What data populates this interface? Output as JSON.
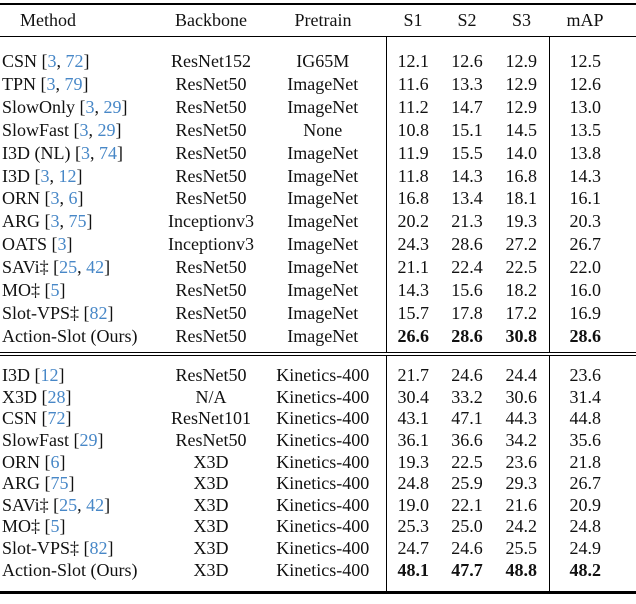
{
  "table": {
    "columns": [
      "Method",
      "Backbone",
      "Pretrain",
      "S1",
      "S2",
      "S3",
      "mAP"
    ],
    "colors": {
      "citation_blue": "#4787C7",
      "text": "#111111",
      "rule": "#000000",
      "background": "#ffffff"
    },
    "sections": [
      {
        "name": "imagenet-pretrain-group",
        "rows": [
          {
            "method": "CSN",
            "cites": [
              "3",
              "72"
            ],
            "backbone": "ResNet152",
            "pretrain": "IG65M",
            "scores": [
              "12.1",
              "12.6",
              "12.9"
            ],
            "map": "12.5",
            "bold": false
          },
          {
            "method": "TPN",
            "cites": [
              "3",
              "79"
            ],
            "backbone": "ResNet50",
            "pretrain": "ImageNet",
            "scores": [
              "11.6",
              "13.3",
              "12.9"
            ],
            "map": "12.6",
            "bold": false
          },
          {
            "method": "SlowOnly",
            "cites": [
              "3",
              "29"
            ],
            "backbone": "ResNet50",
            "pretrain": "ImageNet",
            "scores": [
              "11.2",
              "14.7",
              "12.9"
            ],
            "map": "13.0",
            "bold": false
          },
          {
            "method": "SlowFast",
            "cites": [
              "3",
              "29"
            ],
            "backbone": "ResNet50",
            "pretrain": "None",
            "scores": [
              "10.8",
              "15.1",
              "14.5"
            ],
            "map": "13.5",
            "bold": false
          },
          {
            "method": "I3D (NL)",
            "cites": [
              "3",
              "74"
            ],
            "backbone": "ResNet50",
            "pretrain": "ImageNet",
            "scores": [
              "11.9",
              "15.5",
              "14.0"
            ],
            "map": "13.8",
            "bold": false
          },
          {
            "method": "I3D",
            "cites": [
              "3",
              "12"
            ],
            "backbone": "ResNet50",
            "pretrain": "ImageNet",
            "scores": [
              "11.8",
              "14.3",
              "16.8"
            ],
            "map": "14.3",
            "bold": false
          },
          {
            "method": "ORN",
            "cites": [
              "3",
              "6"
            ],
            "backbone": "ResNet50",
            "pretrain": "ImageNet",
            "scores": [
              "16.8",
              "13.4",
              "18.1"
            ],
            "map": "16.1",
            "bold": false
          },
          {
            "method": "ARG",
            "cites": [
              "3",
              "75"
            ],
            "backbone": "Inceptionv3",
            "pretrain": "ImageNet",
            "scores": [
              "20.2",
              "21.3",
              "19.3"
            ],
            "map": "20.3",
            "bold": false
          },
          {
            "method": "OATS",
            "cites": [
              "3"
            ],
            "backbone": "Inceptionv3",
            "pretrain": "ImageNet",
            "scores": [
              "24.3",
              "28.6",
              "27.2"
            ],
            "map": "26.7",
            "bold": false
          },
          {
            "method": "SAVi‡",
            "cites": [
              "25",
              "42"
            ],
            "backbone": "ResNet50",
            "pretrain": "ImageNet",
            "scores": [
              "21.1",
              "22.4",
              "22.5"
            ],
            "map": "22.0",
            "bold": false
          },
          {
            "method": "MO‡",
            "cites": [
              "5"
            ],
            "backbone": "ResNet50",
            "pretrain": "ImageNet",
            "scores": [
              "14.3",
              "15.6",
              "18.2"
            ],
            "map": "16.0",
            "bold": false
          },
          {
            "method": "Slot-VPS‡",
            "cites": [
              "82"
            ],
            "backbone": "ResNet50",
            "pretrain": "ImageNet",
            "scores": [
              "15.7",
              "17.8",
              "17.2"
            ],
            "map": "16.9",
            "bold": false
          },
          {
            "method": "Action-Slot (Ours)",
            "cites": [],
            "backbone": "ResNet50",
            "pretrain": "ImageNet",
            "scores": [
              "26.6",
              "28.6",
              "30.8"
            ],
            "map": "28.6",
            "bold": true
          }
        ]
      },
      {
        "name": "kinetics-pretrain-group",
        "rows": [
          {
            "method": "I3D",
            "cites": [
              "12"
            ],
            "backbone": "ResNet50",
            "pretrain": "Kinetics-400",
            "scores": [
              "21.7",
              "24.6",
              "24.4"
            ],
            "map": "23.6",
            "bold": false
          },
          {
            "method": "X3D",
            "cites": [
              "28"
            ],
            "backbone": "N/A",
            "pretrain": "Kinetics-400",
            "scores": [
              "30.4",
              "33.2",
              "30.6"
            ],
            "map": "31.4",
            "bold": false
          },
          {
            "method": "CSN",
            "cites": [
              "72"
            ],
            "backbone": "ResNet101",
            "pretrain": "Kinetics-400",
            "scores": [
              "43.1",
              "47.1",
              "44.3"
            ],
            "map": "44.8",
            "bold": false
          },
          {
            "method": "SlowFast",
            "cites": [
              "29"
            ],
            "backbone": "ResNet50",
            "pretrain": "Kinetics-400",
            "scores": [
              "36.1",
              "36.6",
              "34.2"
            ],
            "map": "35.6",
            "bold": false
          },
          {
            "method": "ORN",
            "cites": [
              "6"
            ],
            "backbone": "X3D",
            "pretrain": "Kinetics-400",
            "scores": [
              "19.3",
              "22.5",
              "23.6"
            ],
            "map": "21.8",
            "bold": false
          },
          {
            "method": "ARG",
            "cites": [
              "75"
            ],
            "backbone": "X3D",
            "pretrain": "Kinetics-400",
            "scores": [
              "24.8",
              "25.9",
              "29.3"
            ],
            "map": "26.7",
            "bold": false
          },
          {
            "method": "SAVi‡",
            "cites": [
              "25",
              "42"
            ],
            "backbone": "X3D",
            "pretrain": "Kinetics-400",
            "scores": [
              "19.0",
              "22.1",
              "21.6"
            ],
            "map": "20.9",
            "bold": false
          },
          {
            "method": "MO‡",
            "cites": [
              "5"
            ],
            "backbone": "X3D",
            "pretrain": "Kinetics-400",
            "scores": [
              "25.3",
              "25.0",
              "24.2"
            ],
            "map": "24.8",
            "bold": false
          },
          {
            "method": "Slot-VPS‡",
            "cites": [
              "82"
            ],
            "backbone": "X3D",
            "pretrain": "Kinetics-400",
            "scores": [
              "24.7",
              "24.6",
              "25.5"
            ],
            "map": "24.9",
            "bold": false
          },
          {
            "method": "Action-Slot (Ours)",
            "cites": [],
            "backbone": "X3D",
            "pretrain": "Kinetics-400",
            "scores": [
              "48.1",
              "47.7",
              "48.8"
            ],
            "map": "48.2",
            "bold": true
          }
        ]
      }
    ]
  }
}
